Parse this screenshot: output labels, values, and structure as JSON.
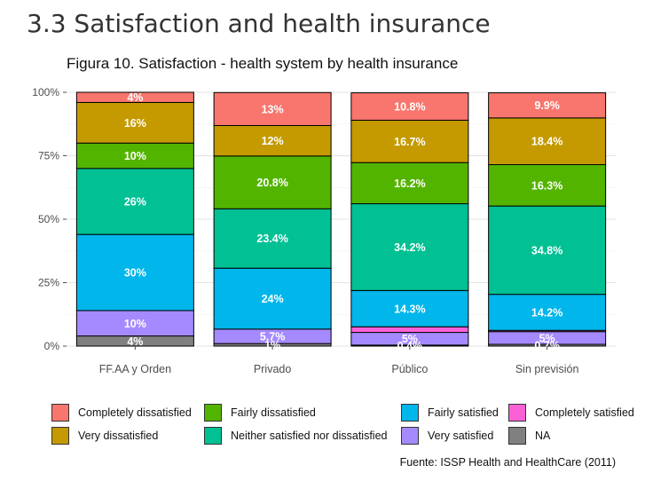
{
  "page": {
    "heading": "3.3 Satisfaction and health insurance",
    "figure_title": "Figura 10. Satisfaction - health system by health insurance",
    "source": "Fuente: ISSP Health and HealthCare (2011)"
  },
  "chart_data": {
    "type": "bar",
    "stacked": true,
    "percent_scale": true,
    "ylim": [
      0,
      100
    ],
    "yticks": [
      "0%",
      "25%",
      "50%",
      "75%",
      "100%"
    ],
    "ytick_values": [
      0,
      25,
      50,
      75,
      100
    ],
    "grid": true,
    "legend_position": "bottom",
    "categories": [
      "FF.AA y Orden",
      "Privado",
      "Público",
      "Sin previsión"
    ],
    "stack_order_bottom_to_top": [
      "NA",
      "Very satisfied",
      "Completely satisfied",
      "Fairly satisfied",
      "Neither satisfied nor dissatisfied",
      "Fairly dissatisfied",
      "Very dissatisfied",
      "Completely dissatisfied"
    ],
    "series": [
      {
        "name": "Completely dissatisfied",
        "color": "#F8766D",
        "values": [
          4,
          13,
          10.8,
          9.9
        ],
        "labels": [
          "4%",
          "13%",
          "10.8%",
          "9.9%"
        ]
      },
      {
        "name": "Very dissatisfied",
        "color": "#C49A00",
        "values": [
          16,
          12,
          16.7,
          18.4
        ],
        "labels": [
          "16%",
          "12%",
          "16.7%",
          "18.4%"
        ]
      },
      {
        "name": "Fairly dissatisfied",
        "color": "#53B400",
        "values": [
          10,
          20.8,
          16.2,
          16.3
        ],
        "labels": [
          "10%",
          "20.8%",
          "16.2%",
          "16.3%"
        ]
      },
      {
        "name": "Neither satisfied nor dissatisfied",
        "color": "#00C094",
        "values": [
          26,
          23.4,
          34.2,
          34.8
        ],
        "labels": [
          "26%",
          "23.4%",
          "34.2%",
          "34.8%"
        ]
      },
      {
        "name": "Fairly satisfied",
        "color": "#00B6EB",
        "values": [
          30,
          24,
          14.3,
          14.2
        ],
        "labels": [
          "30%",
          "24%",
          "14.3%",
          "14.2%"
        ]
      },
      {
        "name": "Completely satisfied",
        "color": "#FB61D7",
        "values": [
          0,
          0,
          2.2,
          0.5
        ],
        "labels": [
          "",
          "",
          "",
          ""
        ]
      },
      {
        "name": "Very satisfied",
        "color": "#A58AFF",
        "values": [
          10,
          5.7,
          5,
          5
        ],
        "labels": [
          "10%",
          "5.7%",
          "5%",
          "5%"
        ]
      },
      {
        "name": "NA",
        "color": "#808080",
        "values": [
          4,
          1,
          0.4,
          0.7
        ],
        "labels": [
          "4%",
          "1%",
          "0.4%",
          "0.7%"
        ]
      }
    ]
  },
  "legend": {
    "items": [
      {
        "label": "Completely dissatisfied",
        "color": "#F8766D"
      },
      {
        "label": "Fairly dissatisfied",
        "color": "#53B400"
      },
      {
        "label": "Fairly satisfied",
        "color": "#00B6EB"
      },
      {
        "label": "Completely satisfied",
        "color": "#FB61D7"
      },
      {
        "label": "Very dissatisfied",
        "color": "#C49A00"
      },
      {
        "label": "Neither satisfied nor dissatisfied",
        "color": "#00C094"
      },
      {
        "label": "Very satisfied",
        "color": "#A58AFF"
      },
      {
        "label": "NA",
        "color": "#808080"
      }
    ]
  }
}
